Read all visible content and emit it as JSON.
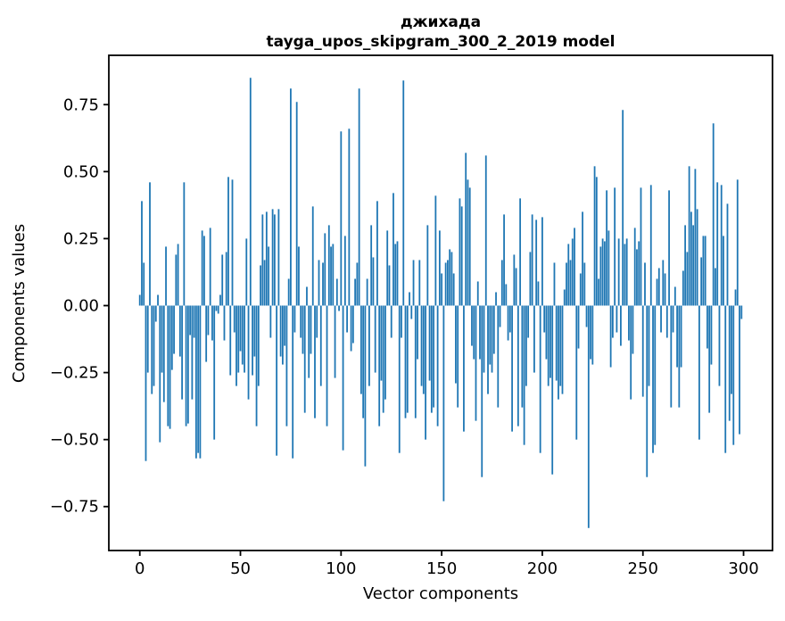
{
  "figure": {
    "background": "#ffffff",
    "title_line1": "джихада",
    "title_line2": "tayga_upos_skipgram_300_2_2019 model",
    "xlabel": "Vector components",
    "ylabel": "Components values"
  },
  "chart_data": {
    "type": "bar",
    "title": "джихада\ntayga_upos_skipgram_300_2_2019 model",
    "xlabel": "Vector components",
    "ylabel": "Components values",
    "bar_color": "#1f77b4",
    "spine_color": "#000000",
    "grid": false,
    "legend": "none",
    "n_components": 300,
    "xlim": [
      -15.39,
      314.39
    ],
    "ylim": [
      -0.914,
      0.934
    ],
    "xticks": [
      0,
      50,
      100,
      150,
      200,
      250,
      300
    ],
    "xtick_labels": [
      "0",
      "50",
      "100",
      "150",
      "200",
      "250",
      "300"
    ],
    "yticks": [
      0.75,
      0.5,
      0.25,
      0.0,
      -0.25,
      -0.5,
      -0.75
    ],
    "ytick_labels": [
      "0.75",
      "0.50",
      "0.25",
      "0.00",
      "−0.25",
      "−0.50",
      "−0.75"
    ],
    "values": [
      0.04,
      0.39,
      0.16,
      -0.58,
      -0.25,
      0.46,
      -0.33,
      -0.3,
      -0.06,
      0.04,
      -0.51,
      -0.25,
      -0.36,
      0.22,
      -0.45,
      -0.46,
      -0.24,
      -0.18,
      0.19,
      0.23,
      -0.19,
      -0.35,
      0.46,
      -0.45,
      -0.44,
      -0.11,
      -0.35,
      -0.12,
      -0.57,
      -0.55,
      -0.57,
      0.28,
      0.26,
      -0.21,
      -0.11,
      0.29,
      -0.13,
      -0.5,
      -0.02,
      -0.03,
      0.04,
      0.19,
      -0.13,
      0.2,
      0.48,
      -0.26,
      0.47,
      -0.1,
      -0.3,
      -0.25,
      -0.17,
      -0.22,
      -0.25,
      0.25,
      -0.35,
      0.85,
      -0.26,
      -0.19,
      -0.45,
      -0.3,
      0.15,
      0.34,
      0.17,
      0.35,
      0.22,
      -0.12,
      0.36,
      0.34,
      -0.56,
      0.36,
      -0.19,
      -0.22,
      -0.15,
      -0.45,
      0.1,
      0.81,
      -0.57,
      -0.1,
      0.76,
      0.22,
      -0.12,
      -0.18,
      -0.4,
      0.07,
      -0.27,
      -0.18,
      0.37,
      -0.42,
      -0.12,
      0.17,
      -0.3,
      0.16,
      0.27,
      -0.45,
      0.3,
      0.22,
      0.23,
      -0.27,
      0.1,
      -0.02,
      0.65,
      -0.54,
      0.26,
      -0.1,
      0.66,
      -0.17,
      -0.14,
      0.1,
      0.16,
      0.81,
      -0.33,
      -0.42,
      -0.6,
      0.1,
      -0.3,
      0.3,
      0.18,
      -0.25,
      0.39,
      -0.45,
      -0.28,
      -0.4,
      -0.35,
      0.28,
      0.15,
      -0.12,
      0.42,
      0.23,
      0.24,
      -0.55,
      -0.12,
      0.84,
      -0.42,
      -0.4,
      0.05,
      -0.05,
      0.17,
      -0.42,
      -0.2,
      0.17,
      -0.3,
      -0.33,
      -0.5,
      0.3,
      -0.28,
      -0.4,
      -0.38,
      0.41,
      -0.45,
      0.28,
      0.12,
      -0.73,
      0.16,
      0.17,
      0.21,
      0.2,
      0.12,
      -0.29,
      -0.38,
      0.4,
      0.37,
      -0.47,
      0.57,
      0.47,
      0.44,
      -0.15,
      -0.2,
      -0.43,
      0.09,
      -0.2,
      -0.64,
      -0.25,
      0.56,
      -0.33,
      -0.22,
      -0.25,
      -0.18,
      0.05,
      -0.38,
      -0.08,
      0.17,
      0.34,
      0.08,
      -0.13,
      -0.1,
      -0.47,
      0.19,
      0.14,
      -0.45,
      0.4,
      -0.38,
      -0.52,
      -0.3,
      -0.12,
      0.2,
      0.34,
      -0.25,
      0.32,
      0.09,
      -0.55,
      0.33,
      -0.1,
      -0.2,
      -0.3,
      -0.27,
      -0.63,
      0.16,
      -0.28,
      -0.35,
      -0.3,
      -0.33,
      0.06,
      0.16,
      0.23,
      0.17,
      0.25,
      0.29,
      -0.5,
      -0.16,
      0.12,
      0.35,
      0.16,
      -0.08,
      -0.83,
      -0.2,
      -0.22,
      0.52,
      0.48,
      0.1,
      0.22,
      0.25,
      0.24,
      0.43,
      0.28,
      -0.23,
      -0.12,
      0.44,
      -0.1,
      0.25,
      -0.15,
      0.73,
      0.23,
      0.25,
      -0.13,
      -0.35,
      -0.18,
      0.29,
      0.21,
      0.24,
      0.44,
      -0.34,
      0.16,
      -0.64,
      -0.3,
      0.45,
      -0.55,
      -0.52,
      0.1,
      0.14,
      -0.1,
      0.17,
      0.12,
      -0.12,
      0.43,
      -0.38,
      -0.1,
      0.07,
      -0.23,
      -0.38,
      -0.23,
      0.13,
      0.3,
      0.2,
      0.52,
      0.35,
      0.3,
      0.51,
      0.36,
      -0.5,
      0.18,
      0.26,
      0.26,
      -0.16,
      -0.4,
      -0.22,
      0.68,
      0.14,
      0.46,
      -0.3,
      0.45,
      0.26,
      -0.55,
      0.38,
      -0.43,
      -0.33,
      -0.52,
      0.06,
      0.47,
      -0.48,
      -0.05
    ]
  }
}
